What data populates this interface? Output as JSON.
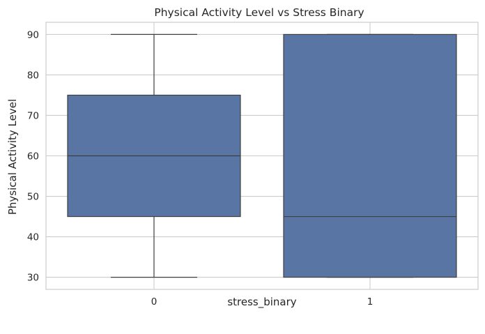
{
  "chart_data": {
    "type": "box",
    "title": "Physical Activity Level vs Stress Binary",
    "xlabel": "stress_binary",
    "ylabel": "Physical Activity Level",
    "categories": [
      "0",
      "1"
    ],
    "ylim": [
      27,
      93
    ],
    "yticks": [
      30,
      40,
      50,
      60,
      70,
      80,
      90
    ],
    "ytick_labels": [
      "30",
      "40",
      "50",
      "60",
      "70",
      "80",
      "90"
    ],
    "grid": true,
    "legend": "none",
    "boxes": [
      {
        "category": "0",
        "whisker_low": 30,
        "q1": 45,
        "median": 60,
        "q3": 75,
        "whisker_high": 90
      },
      {
        "category": "1",
        "whisker_low": 30,
        "q1": 30,
        "median": 45,
        "q3": 90,
        "whisker_high": 90
      }
    ],
    "colors": {
      "box_fill": "#5975a4",
      "box_edge": "#3f3f3f",
      "grid": "#cccccc",
      "frame": "#cccccc"
    }
  }
}
